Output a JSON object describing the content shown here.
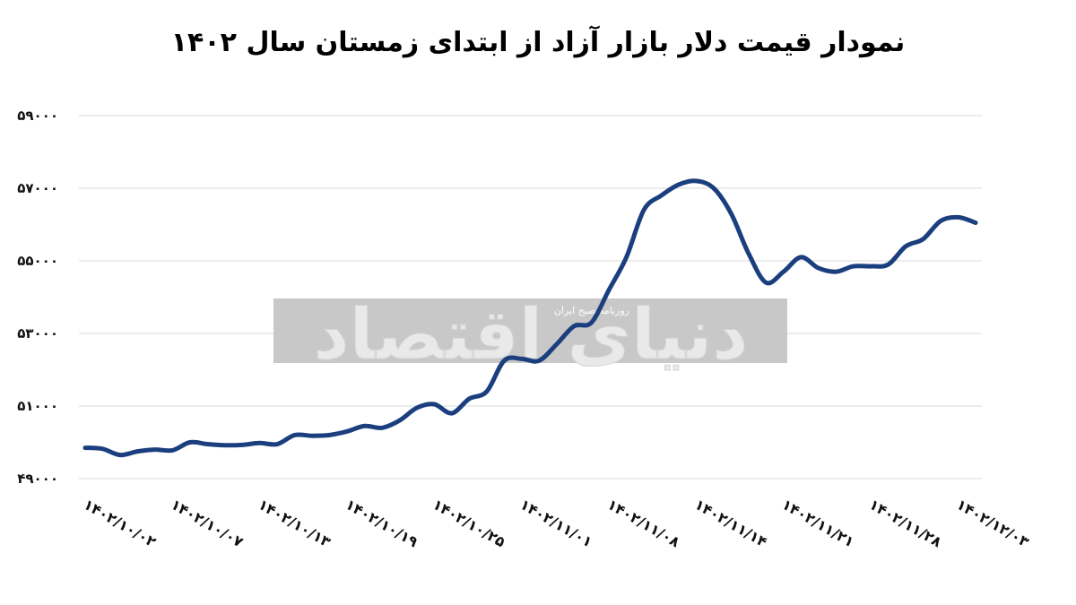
{
  "chart_data": {
    "type": "line",
    "title": "نمودار قیمت دلار بازار آزاد از ابتدای زمستان سال ۱۴۰۲",
    "xlabel": "",
    "ylabel": "",
    "ylim": [
      49000,
      59000
    ],
    "yticks": [
      49000,
      51000,
      53000,
      55000,
      57000,
      59000
    ],
    "ytick_labels": [
      "۴۹۰۰۰",
      "۵۱۰۰۰",
      "۵۳۰۰۰",
      "۵۵۰۰۰",
      "۵۷۰۰۰",
      "۵۹۰۰۰"
    ],
    "grid": true,
    "line_color": "#1b3f7e",
    "xtick_labels": [
      "۱۴۰۲/۱۰/۰۲",
      "۱۴۰۲/۱۰/۰۷",
      "۱۴۰۲/۱۰/۱۳",
      "۱۴۰۲/۱۰/۱۹",
      "۱۴۰۲/۱۰/۲۵",
      "۱۴۰۲/۱۱/۰۱",
      "۱۴۰۲/۱۱/۰۸",
      "۱۴۰۲/۱۱/۱۴",
      "۱۴۰۲/۱۱/۲۱",
      "۱۴۰۲/۱۱/۲۸",
      "۱۴۰۲/۱۲/۰۳"
    ],
    "xtick_positions": [
      0,
      5,
      10,
      15,
      20,
      25,
      30,
      35,
      40,
      45,
      50
    ],
    "x": [
      0,
      1,
      2,
      3,
      4,
      5,
      6,
      7,
      8,
      9,
      10,
      11,
      12,
      13,
      14,
      15,
      16,
      17,
      18,
      19,
      20,
      21,
      22,
      23,
      24,
      25,
      26,
      27,
      28,
      29,
      30,
      31,
      32,
      33,
      34,
      35,
      36,
      37,
      38,
      39,
      40,
      41,
      42,
      43,
      44,
      45,
      46,
      47,
      48,
      49,
      50,
      51
    ],
    "values": [
      49850,
      49820,
      49650,
      49750,
      49800,
      49780,
      50000,
      49950,
      49920,
      49930,
      49980,
      49950,
      50200,
      50180,
      50200,
      50300,
      50450,
      50400,
      50600,
      50950,
      51050,
      50800,
      51200,
      51400,
      52250,
      52300,
      52250,
      52700,
      53200,
      53300,
      54200,
      55100,
      56400,
      56800,
      57100,
      57200,
      57000,
      56300,
      55200,
      54400,
      54700,
      55100,
      54800,
      54700,
      54850,
      54850,
      54900,
      55400,
      55600,
      56100,
      56200,
      56050
    ]
  },
  "watermark": {
    "logo_text": "دنیای اقتصاد",
    "subtitle": "روزنامه صبح ایران"
  }
}
